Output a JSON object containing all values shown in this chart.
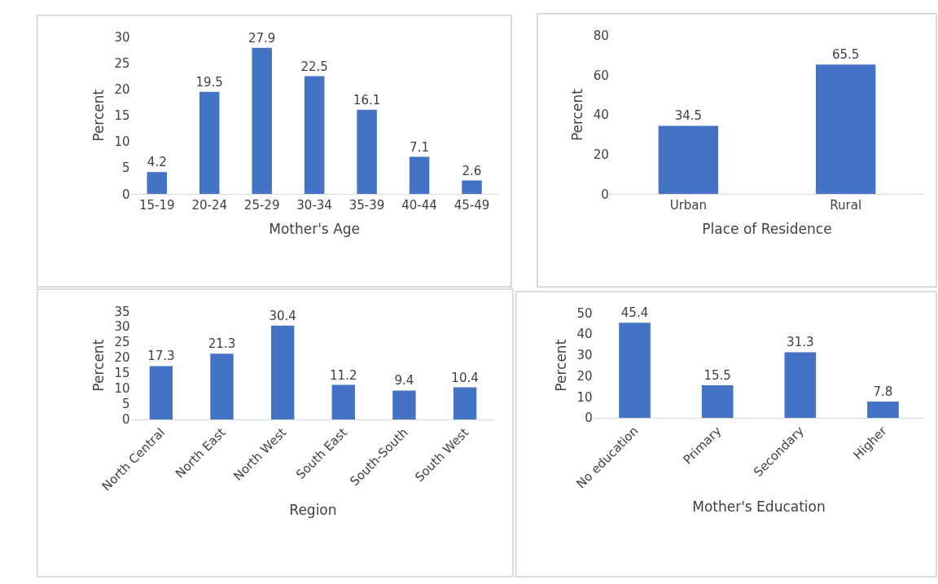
{
  "chart_data": [
    {
      "type": "bar",
      "xlabel": "Mother's Age",
      "ylabel": "Percent",
      "categories": [
        "15-19",
        "20-24",
        "25-29",
        "30-34",
        "35-39",
        "40-44",
        "45-49"
      ],
      "values": [
        4.2,
        19.5,
        27.9,
        22.5,
        16.1,
        7.1,
        2.6
      ],
      "color": "#4472c4",
      "ylim": [
        0,
        30
      ],
      "yticks": [
        0,
        5,
        10,
        15,
        20,
        25,
        30
      ],
      "data_labels": true
    },
    {
      "type": "bar",
      "xlabel": "Place of Residence",
      "ylabel": "Percent",
      "categories": [
        "Urban",
        "Rural"
      ],
      "values": [
        34.5,
        65.5
      ],
      "color": "#4472c4",
      "ylim": [
        0,
        80
      ],
      "yticks": [
        0,
        20,
        40,
        60,
        80
      ],
      "data_labels": true
    },
    {
      "type": "bar",
      "xlabel": "Region",
      "ylabel": "Percent",
      "categories": [
        "North Central",
        "North East",
        "North West",
        "South East",
        "South-South",
        "South West"
      ],
      "values": [
        17.3,
        21.3,
        30.4,
        11.2,
        9.4,
        10.4
      ],
      "color": "#4472c4",
      "ylim": [
        0,
        35
      ],
      "yticks": [
        0,
        5,
        10,
        15,
        20,
        25,
        30,
        35
      ],
      "data_labels": true
    },
    {
      "type": "bar",
      "xlabel": "Mother's Education",
      "ylabel": "Percent",
      "categories": [
        "No education",
        "Primary",
        "Secondary",
        "Higher"
      ],
      "values": [
        45.4,
        15.5,
        31.3,
        7.8
      ],
      "color": "#4472c4",
      "ylim": [
        0,
        50
      ],
      "yticks": [
        0,
        10,
        20,
        30,
        40,
        50
      ],
      "data_labels": true
    }
  ]
}
